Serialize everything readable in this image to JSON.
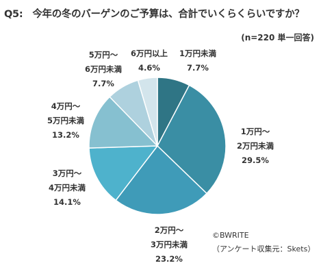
{
  "header": {
    "question_number": "Q5:",
    "question_text": "今年の冬のバーゲンのご予算は、合計でいくらくらいですか？",
    "sample_note": "(n=220 単一回答)"
  },
  "credit": {
    "copyright": "©BWRITE",
    "source": "（アンケート収集元：Skets）"
  },
  "chart_data": {
    "type": "pie",
    "categories": [
      "1万円未満",
      "1万円〜2万円未満",
      "2万円〜3万円未満",
      "3万円〜4万円未満",
      "4万円〜5万円未満",
      "5万円〜6万円未満",
      "6万円以上"
    ],
    "values": [
      7.7,
      29.5,
      23.2,
      14.1,
      13.2,
      7.7,
      4.6
    ],
    "label_lines": [
      [
        "1万円未満"
      ],
      [
        "1万円〜",
        "2万円未満"
      ],
      [
        "2万円〜",
        "3万円未満"
      ],
      [
        "3万円〜",
        "4万円未満"
      ],
      [
        "4万円〜",
        "5万円未満"
      ],
      [
        "5万円〜",
        "6万円未満"
      ],
      [
        "6万円以上"
      ]
    ],
    "value_labels": [
      "7.7%",
      "29.5%",
      "23.2%",
      "14.1%",
      "13.2%",
      "7.7%",
      "4.6%"
    ],
    "colors": [
      "#2f7585",
      "#3a8ea4",
      "#3f9bb8",
      "#4eb2cc",
      "#86c0d0",
      "#aed1de",
      "#d3e5ec"
    ],
    "start_angle_deg": 0,
    "direction": "clockwise"
  }
}
